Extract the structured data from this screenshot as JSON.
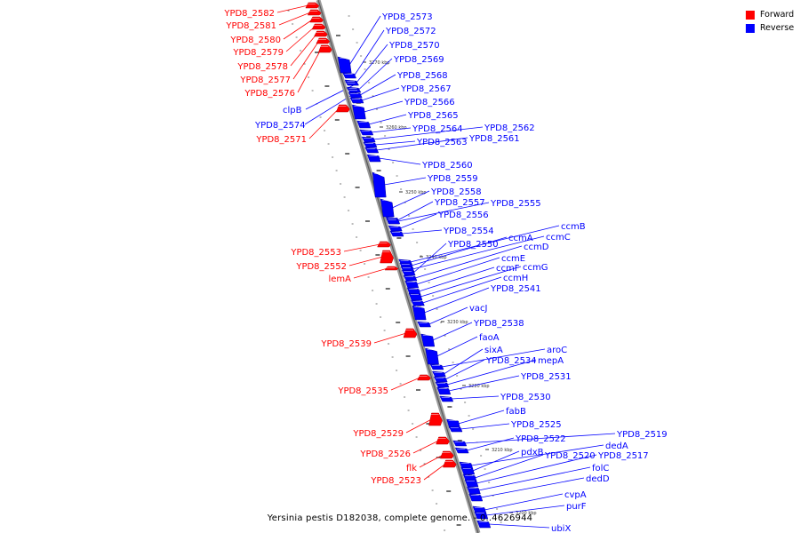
{
  "legend": {
    "forward_label": "Forward",
    "reverse_label": "Reverse",
    "forward_color": "#ff0000",
    "reverse_color": "#0000ff"
  },
  "caption": "Yersinia pestis D182038, complete genome. - 0..4626944",
  "ticks": [
    "3270 kbp",
    "3260 kbp",
    "3250 kbp",
    "3240 kbp",
    "3230 kbp",
    "3220 kbp",
    "3210 kbp",
    "3200 kbp"
  ],
  "forward_genes": [
    "YPD8_2582",
    "YPD8_2581",
    "YPD8_2580",
    "YPD8_2579",
    "YPD8_2578",
    "YPD8_2577",
    "YPD8_2576",
    "YPD8_2571",
    "YPD8_2553",
    "YPD8_2552",
    "lemA",
    "YPD8_2539",
    "YPD8_2535",
    "YPD8_2529",
    "YPD8_2526",
    "flk",
    "YPD8_2523"
  ],
  "reverse_genes": [
    "YPD8_2573",
    "YPD8_2572",
    "YPD8_2570",
    "YPD8_2569",
    "YPD8_2568",
    "YPD8_2567",
    "YPD8_2566",
    "YPD8_2565",
    "clpB",
    "YPD8_2574",
    "YPD8_2564",
    "YPD8_2562",
    "YPD8_2563",
    "YPD8_2561",
    "YPD8_2560",
    "YPD8_2559",
    "YPD8_2558",
    "YPD8_2557",
    "YPD8_2555",
    "YPD8_2556",
    "YPD8_2554",
    "ccmB",
    "ccmA",
    "ccmC",
    "YPD8_2550",
    "ccmD",
    "ccmE",
    "ccmF",
    "ccmG",
    "ccmH",
    "YPD8_2541",
    "vacJ",
    "YPD8_2538",
    "faoA",
    "aroC",
    "sixA",
    "YPD8_2534",
    "mepA",
    "YPD8_2531",
    "YPD8_2530",
    "fabB",
    "YPD8_2525",
    "YPD8_2519",
    "YPD8_2522",
    "dedA",
    "pdxB",
    "YPD8_2520",
    "YPD8_2517",
    "folC",
    "dedD",
    "cvpA",
    "purF",
    "ubiX"
  ]
}
